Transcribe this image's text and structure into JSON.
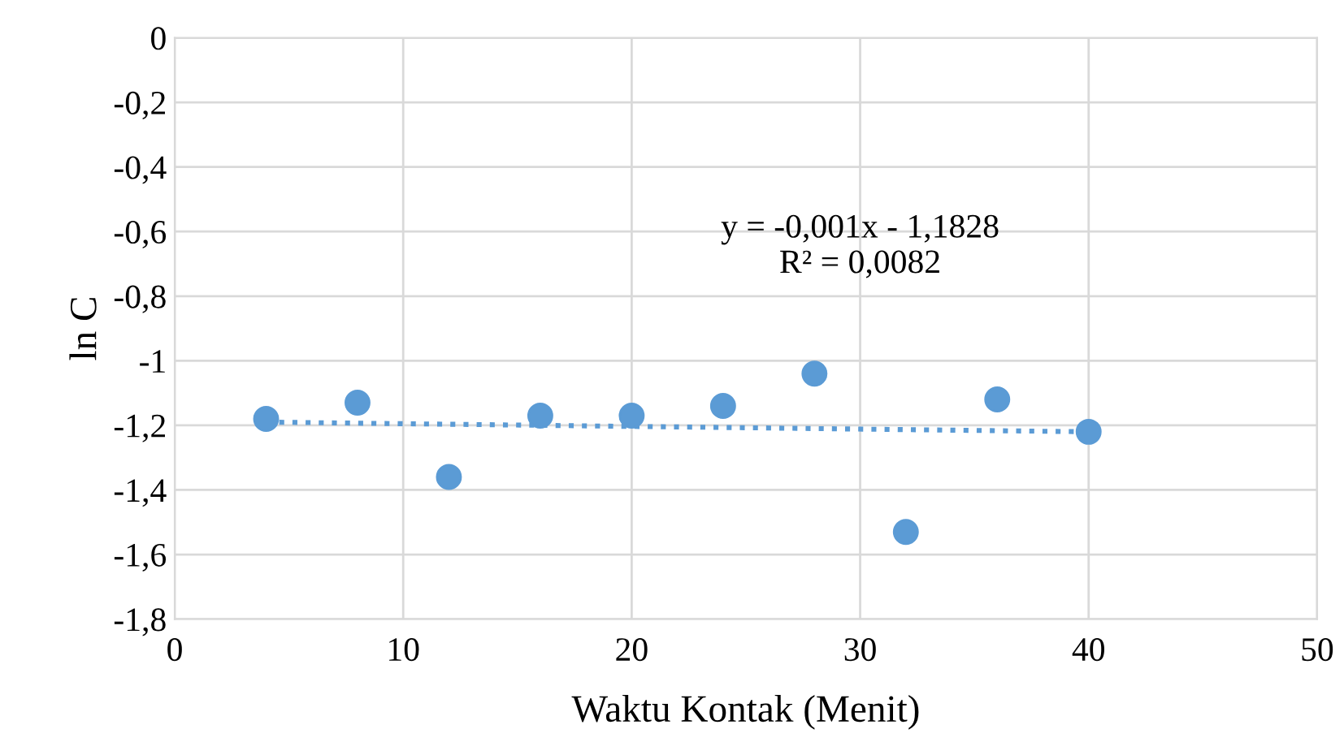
{
  "chart_data": {
    "type": "scatter",
    "xlabel": "Waktu Kontak (Menit)",
    "ylabel": "ln C",
    "x": [
      4,
      8,
      12,
      16,
      20,
      24,
      28,
      32,
      36,
      40
    ],
    "series": [
      {
        "color": "#5b9bd5",
        "marker": "circle",
        "values": [
          -1.18,
          -1.13,
          -1.36,
          -1.17,
          -1.17,
          -1.14,
          -1.04,
          -1.53,
          -1.12,
          -1.22
        ]
      },
      {
        "type": "line",
        "color": "#5b9bd5",
        "line_style": "dotted",
        "x": [
          4,
          40
        ],
        "values": [
          -1.19,
          -1.22
        ]
      }
    ],
    "annotations": [
      "y = -0,001x - 1,1828\nR² = 0,0082"
    ],
    "xlim": [
      0,
      50
    ],
    "xticks": [
      0,
      10,
      20,
      30,
      40,
      50
    ],
    "ylim": [
      -1.8,
      0
    ],
    "yticks": [
      {
        "value": -1.8,
        "label": "-1,8"
      },
      {
        "value": -1.6,
        "label": "-1,6"
      },
      {
        "value": -1.4,
        "label": "-1,4"
      },
      {
        "value": -1.2,
        "label": "-1,2"
      },
      {
        "value": -1,
        "label": "-1"
      },
      {
        "value": -0.8,
        "label": "-0,8"
      },
      {
        "value": -0.6,
        "label": "-0,6"
      },
      {
        "value": -0.4,
        "label": "-0,4"
      },
      {
        "value": -0.2,
        "label": "-0,2"
      },
      {
        "value": 0,
        "label": "0"
      }
    ],
    "grid": true,
    "legend": false
  }
}
